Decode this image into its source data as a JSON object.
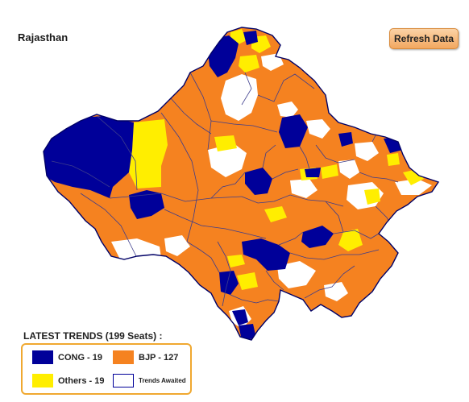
{
  "title": "Rajasthan",
  "refresh_button": {
    "label": "Refresh Data"
  },
  "legend": {
    "title": "LATEST TRENDS (199 Seats) :",
    "items": [
      {
        "key": "cong",
        "label": "CONG -  19",
        "color": "#000099"
      },
      {
        "key": "bjp",
        "label": "BJP -  127",
        "color": "#f58220"
      },
      {
        "key": "others",
        "label": "Others -  19",
        "color": "#ffee00"
      },
      {
        "key": "awaited",
        "label": "Trends Awaited",
        "color": "#ffffff"
      }
    ]
  },
  "colors": {
    "boundary": "#000066",
    "constituency_line": "#3c3c8c"
  }
}
